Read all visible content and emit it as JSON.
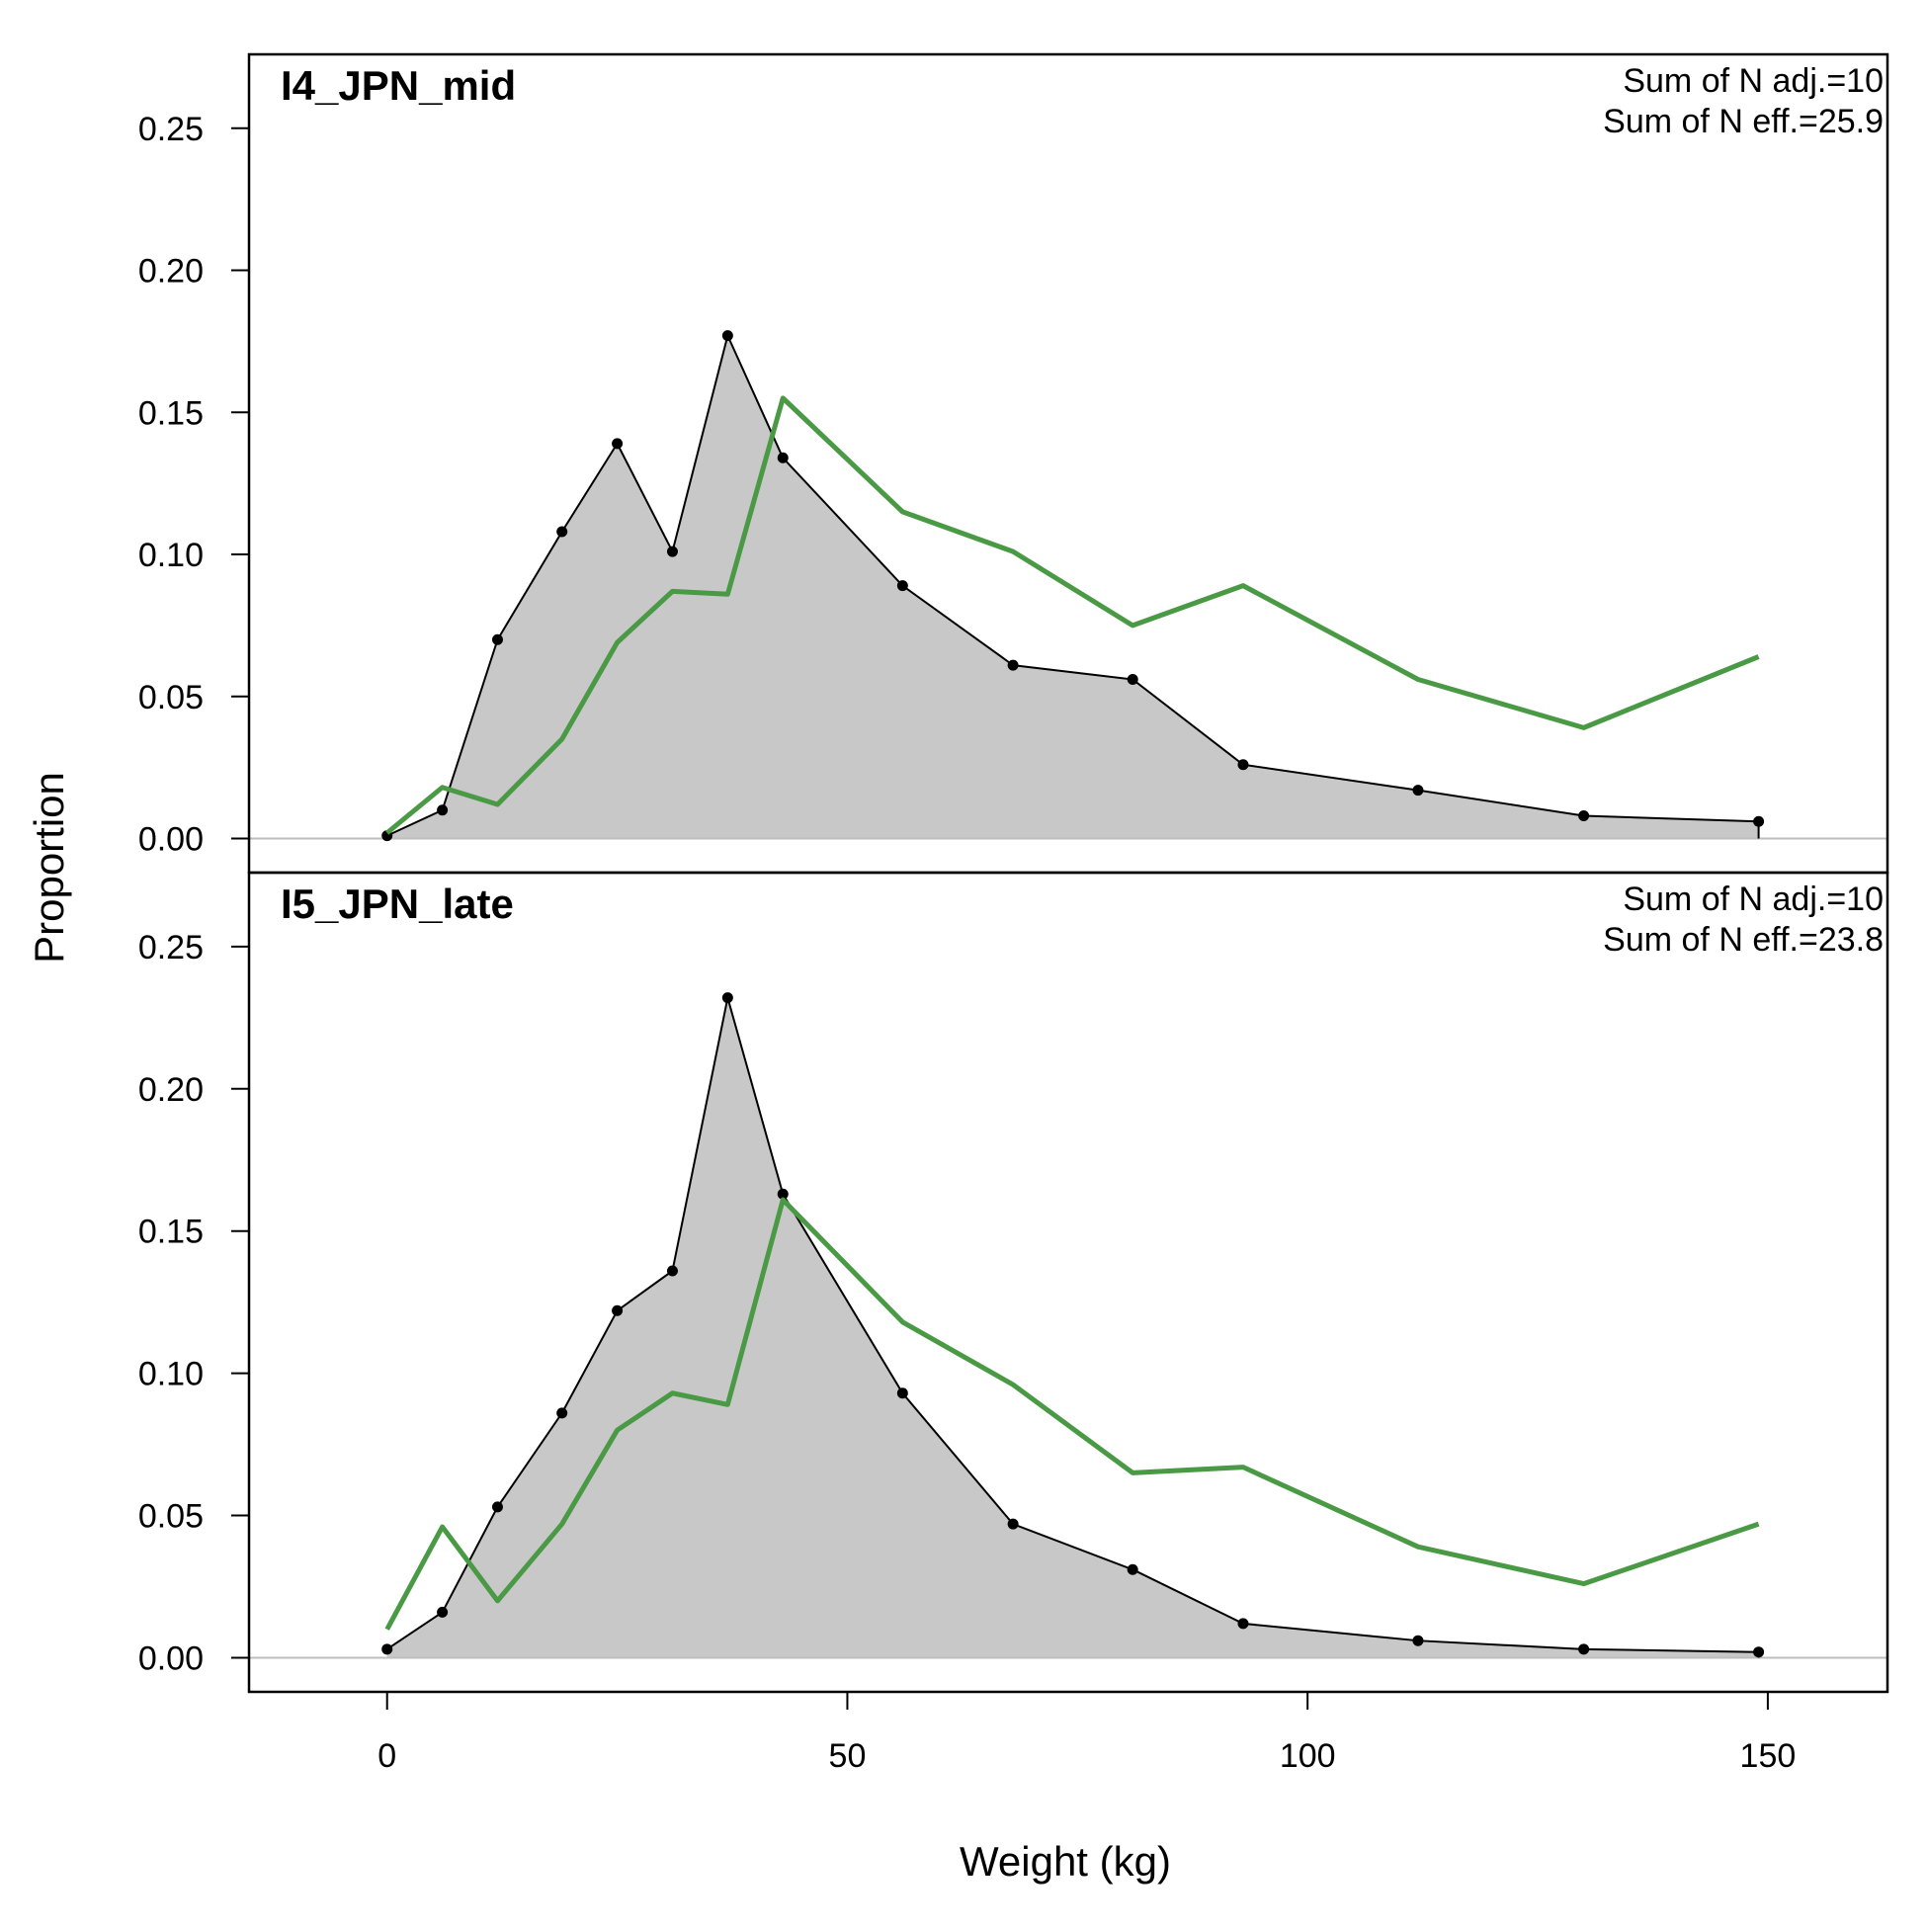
{
  "chart_data": {
    "type": "area",
    "xlabel": "Weight (kg)",
    "ylabel": "Proportion",
    "xlim": [
      -15,
      163
    ],
    "ylim": [
      -0.012,
      0.276
    ],
    "x_ticks": [
      "0",
      "50",
      "100",
      "150"
    ],
    "y_ticks": [
      "0.00",
      "0.05",
      "0.10",
      "0.15",
      "0.20",
      "0.25"
    ],
    "colors": {
      "observed_fill": "#c8c8c8",
      "observed_line": "#000000",
      "expected_line": "#4a9a45",
      "zero_line": "#bebebe"
    },
    "panels": [
      {
        "title": "I4_JPN_mid",
        "notes": [
          "Sum of N adj.=10",
          "Sum of N eff.=25.9"
        ],
        "series": [
          {
            "x": [
              0,
              6,
              12,
              19,
              25,
              31,
              37,
              43,
              56,
              68,
              81,
              93,
              112,
              130,
              149
            ],
            "values": [
              0.001,
              0.01,
              0.07,
              0.108,
              0.139,
              0.101,
              0.177,
              0.134,
              0.089,
              0.061,
              0.056,
              0.026,
              0.017,
              0.008,
              0.006
            ]
          },
          {
            "x": [
              0,
              6,
              12,
              19,
              25,
              31,
              37,
              43,
              56,
              68,
              81,
              93,
              112,
              130,
              149
            ],
            "values": [
              0.002,
              0.018,
              0.012,
              0.035,
              0.069,
              0.087,
              0.086,
              0.155,
              0.115,
              0.101,
              0.075,
              0.089,
              0.056,
              0.039,
              0.064
            ]
          }
        ]
      },
      {
        "title": "I5_JPN_late",
        "notes": [
          "Sum of N adj.=10",
          "Sum of N eff.=23.8"
        ],
        "series": [
          {
            "x": [
              0,
              6,
              12,
              19,
              25,
              31,
              37,
              43,
              56,
              68,
              81,
              93,
              112,
              130,
              149
            ],
            "values": [
              0.003,
              0.016,
              0.053,
              0.086,
              0.122,
              0.136,
              0.232,
              0.163,
              0.093,
              0.047,
              0.031,
              0.012,
              0.006,
              0.003,
              0.002
            ]
          },
          {
            "x": [
              0,
              6,
              12,
              19,
              25,
              31,
              37,
              43,
              56,
              68,
              81,
              93,
              112,
              130,
              149
            ],
            "values": [
              0.01,
              0.046,
              0.02,
              0.047,
              0.08,
              0.093,
              0.089,
              0.161,
              0.118,
              0.096,
              0.065,
              0.067,
              0.039,
              0.026,
              0.047
            ]
          }
        ]
      }
    ]
  }
}
